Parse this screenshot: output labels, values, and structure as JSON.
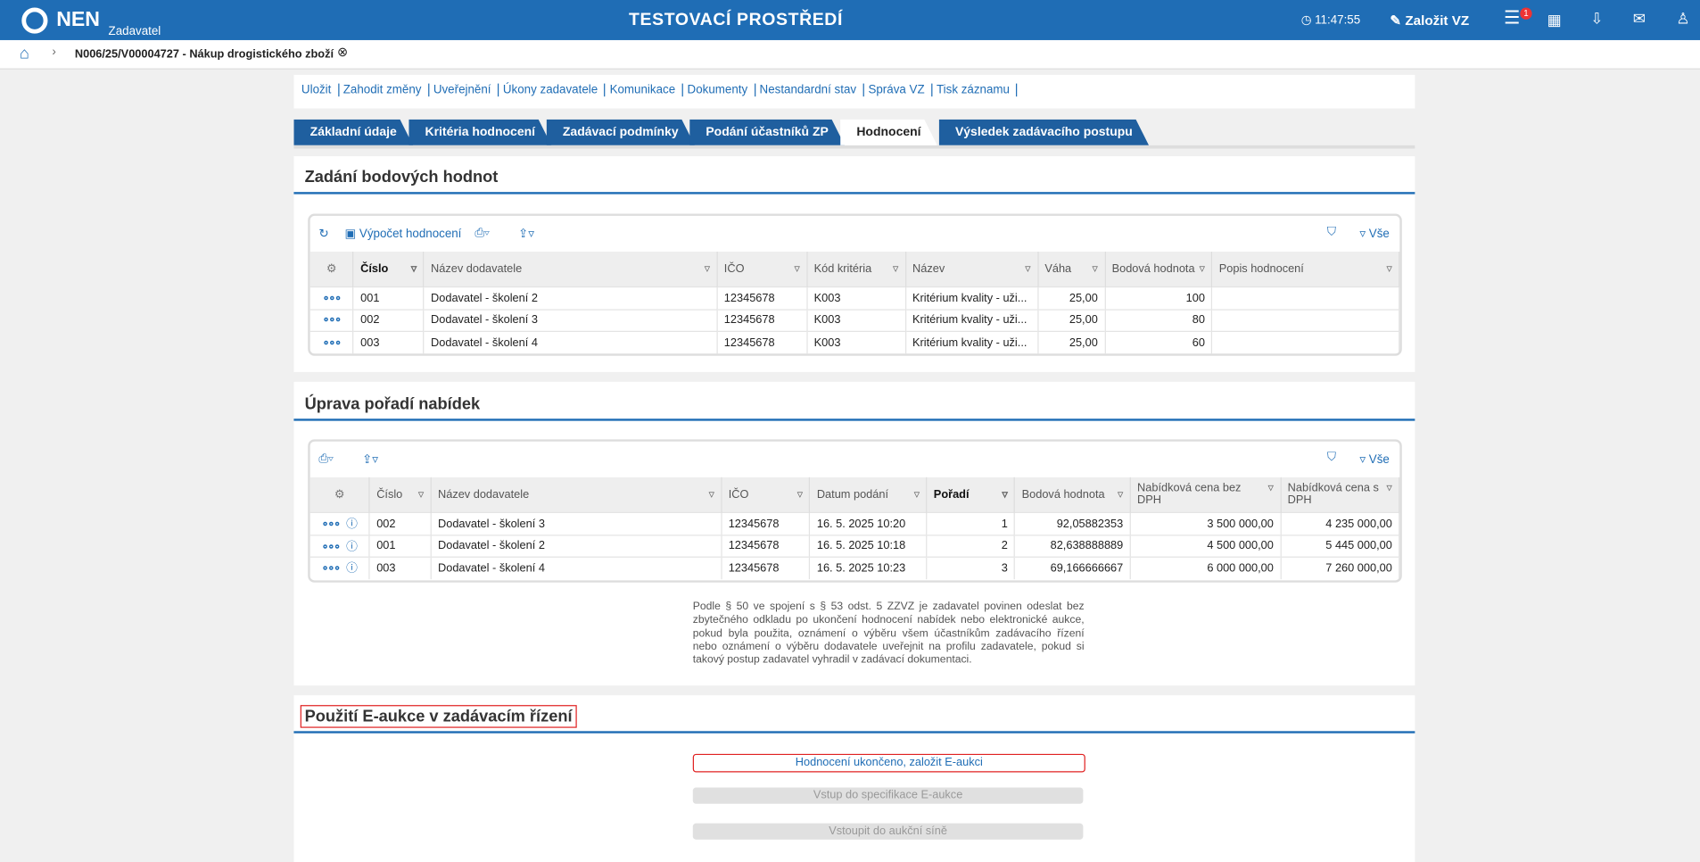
{
  "header": {
    "logo": "NEN",
    "logo_sub": "Zadavatel",
    "title": "TESTOVACÍ PROSTŘEDÍ",
    "time": "11:47:55",
    "create": "Založit VZ",
    "badge": "1"
  },
  "breadcrumb": {
    "title": "N006/25/V00004727 - Nákup drogistického zboží"
  },
  "toolbar": [
    "Uložit",
    "Zahodit změny",
    "Uveřejnění",
    "Úkony zadavatele",
    "Komunikace",
    "Dokumenty",
    "Nestandardní stav",
    "Správa VZ",
    "Tisk záznamu"
  ],
  "tabs": [
    "Základní údaje",
    "Kritéria hodnocení",
    "Zadávací podmínky",
    "Podání účastníků ZP",
    "Hodnocení",
    "Výsledek zadávacího postupu"
  ],
  "section1": {
    "title": "Zadání bodových hodnot",
    "action": "Výpočet hodnocení",
    "filter_all": "Vše",
    "columns": [
      "Číslo",
      "Název dodavatele",
      "IČO",
      "Kód kritéria",
      "Název",
      "Váha",
      "Bodová hodnota",
      "Popis hodnocení"
    ],
    "rows": [
      [
        "001",
        "Dodavatel - školení 2",
        "12345678",
        "K003",
        "Kritérium kvality - uži...",
        "25,00",
        "100",
        ""
      ],
      [
        "002",
        "Dodavatel - školení 3",
        "12345678",
        "K003",
        "Kritérium kvality - uži...",
        "25,00",
        "80",
        ""
      ],
      [
        "003",
        "Dodavatel - školení 4",
        "12345678",
        "K003",
        "Kritérium kvality - uži...",
        "25,00",
        "60",
        ""
      ]
    ]
  },
  "section2": {
    "title": "Úprava pořadí nabídek",
    "filter_all": "Vše",
    "columns": [
      "Číslo",
      "Název dodavatele",
      "IČO",
      "Datum podání",
      "Pořadí",
      "Bodová hodnota",
      "Nabídková cena bez DPH",
      "Nabídková cena s DPH"
    ],
    "rows": [
      [
        "002",
        "Dodavatel - školení 3",
        "12345678",
        "16. 5. 2025 10:20",
        "1",
        "92,05882353",
        "3 500 000,00",
        "4 235 000,00"
      ],
      [
        "001",
        "Dodavatel - školení 2",
        "12345678",
        "16. 5. 2025 10:18",
        "2",
        "82,638888889",
        "4 500 000,00",
        "5 445 000,00"
      ],
      [
        "003",
        "Dodavatel - školení 4",
        "12345678",
        "16. 5. 2025 10:23",
        "3",
        "69,166666667",
        "6 000 000,00",
        "7 260 000,00"
      ]
    ],
    "note": "Podle § 50 ve spojení s § 53 odst. 5 ZZVZ je zadavatel povinen odeslat bez zbytečného odkladu po ukončení hodnocení nabídek nebo elektronické aukce, pokud byla použita, oznámení o výběru všem účastníkům zadávacího řízení nebo oznámení o výběru dodavatele uveřejnit na profilu zadavatele, pokud si takový postup zadavatel vyhradil v zadávací dokumentaci."
  },
  "section3": {
    "title": "Použití E-aukce v zadávacím řízení",
    "buttons": [
      "Hodnocení ukončeno, založit E-aukci",
      "Vstup do specifikace E-aukce",
      "Vstoupit do aukční síně"
    ]
  }
}
